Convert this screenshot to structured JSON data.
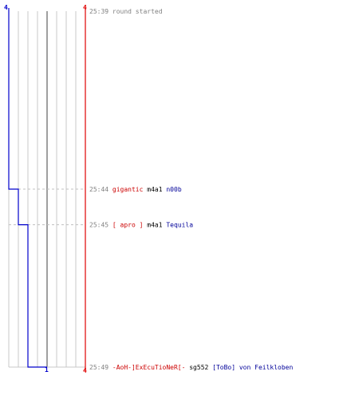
{
  "colors": {
    "background": "#ffffff",
    "grid": "#c8c8c8",
    "center_line": "#808080",
    "blue_team": "#0000cc",
    "red_team": "#e00000",
    "time": "#808080",
    "killer_red": "#cc0000",
    "weapon": "#000000",
    "victim_blue": "#000099",
    "dashed": "#c0c0c0"
  },
  "score_labels": {
    "blue_top": "4",
    "red_top": "4",
    "blue_bottom": "1",
    "red_bottom": "4"
  },
  "events": [
    {
      "time": "25:39",
      "message": "round started",
      "killer": "",
      "weapon": "",
      "victim": "",
      "blue_score": 4,
      "red_score": 4
    },
    {
      "time": "25:44",
      "message": "",
      "killer": "gigantic",
      "weapon": "m4a1",
      "victim": "n00b",
      "blue_score": 3,
      "red_score": 4
    },
    {
      "time": "25:45",
      "message": "",
      "killer": "[ apro ]",
      "weapon": "m4a1",
      "victim": "Tequila",
      "blue_score": 2,
      "red_score": 4
    },
    {
      "time": "25:49",
      "message": "",
      "killer": "-AoH-]ExEcuTioNeR[-",
      "weapon": "sg552",
      "victim": "[ToBo] von Feilkloben",
      "blue_score": 1,
      "red_score": 4
    }
  ]
}
